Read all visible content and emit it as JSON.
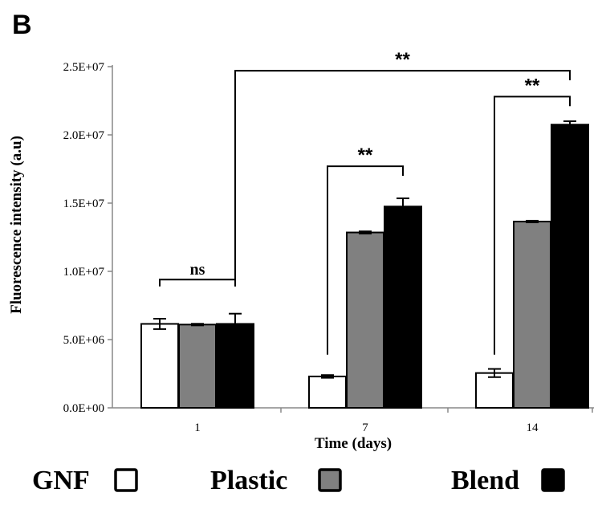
{
  "panel_label": "B",
  "chart_data": {
    "type": "bar",
    "xlabel": "Time (days)",
    "ylabel": "Fluorescence intensity (a.u)",
    "categories": [
      "1",
      "7",
      "14"
    ],
    "ylim": [
      0,
      25000000
    ],
    "yticks": [
      {
        "value": 0,
        "label": "0.0E+00"
      },
      {
        "value": 5000000,
        "label": "5.0E+06"
      },
      {
        "value": 10000000,
        "label": "1.0E+07"
      },
      {
        "value": 15000000,
        "label": "1.5E+07"
      },
      {
        "value": 20000000,
        "label": "2.0E+07"
      },
      {
        "value": 25000000,
        "label": "2.5E+07"
      }
    ],
    "series": [
      {
        "name": "GNF",
        "color": "#ffffff",
        "values": [
          6150000,
          2300000,
          2550000
        ],
        "errors": [
          380000,
          100000,
          300000
        ]
      },
      {
        "name": "Plastic",
        "color": "#808080",
        "values": [
          6100000,
          12850000,
          13650000
        ],
        "errors": [
          60000,
          80000,
          60000
        ]
      },
      {
        "name": "Blend",
        "color": "#000000",
        "values": [
          6150000,
          14750000,
          20750000
        ],
        "errors": [
          750000,
          600000,
          250000
        ]
      }
    ],
    "annotations": [
      {
        "label": "ns",
        "from": {
          "category": 0,
          "series": 0
        },
        "to": {
          "category": 0,
          "series": 2
        },
        "bracket_y": 9400000,
        "left_leg_y": 8900000,
        "right_leg_y": 8900000
      },
      {
        "label": "**",
        "from": {
          "category": 1,
          "series": 0
        },
        "to": {
          "category": 1,
          "series": 2
        },
        "bracket_y": 17700000,
        "left_leg_y": 3900000,
        "right_leg_y": 17000000
      },
      {
        "label": "**",
        "from": {
          "category": 2,
          "series": 0
        },
        "to": {
          "category": 2,
          "series": 2
        },
        "bracket_y": 22800000,
        "left_leg_y": 3900000,
        "right_leg_y": 22100000
      },
      {
        "label": "**",
        "from": {
          "category": 0,
          "series": 2
        },
        "to": {
          "category": 2,
          "series": 2
        },
        "bracket_y": 24700000,
        "left_leg_y": 8900000,
        "right_leg_y": 24000000
      }
    ],
    "legend": {
      "placement": "bottom"
    }
  }
}
